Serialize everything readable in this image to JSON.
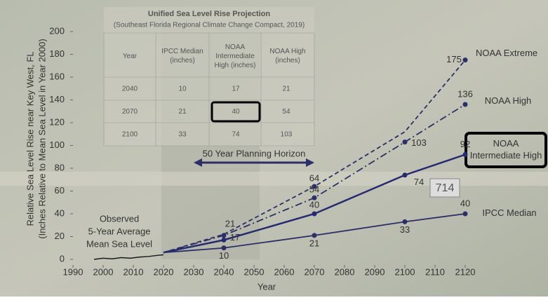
{
  "chart_data": {
    "type": "line",
    "table": {
      "title": "Unified Sea Level Rise Projection",
      "subtitle": "(Southeast Florida Regional Climate Change Compact, 2019)",
      "columns": [
        "Year",
        "IPCC Median (inches)",
        "NOAA Intermediate High (inches)",
        "NOAA High (inches)"
      ],
      "rows": [
        [
          "2040",
          "10",
          "17",
          "21"
        ],
        [
          "2070",
          "21",
          "40",
          "54"
        ],
        [
          "2100",
          "33",
          "74",
          "103"
        ]
      ]
    },
    "xlabel": "Year",
    "ylabel": [
      "Relative Sea Level Rise near Key West, FL",
      "(Inches Relative to Mean Sea Level in Year 2000)"
    ],
    "xlim": [
      1990,
      2120
    ],
    "xticks": [
      1990,
      2000,
      2010,
      2020,
      2030,
      2040,
      2050,
      2060,
      2070,
      2080,
      2090,
      2100,
      2110,
      2120
    ],
    "ylim": [
      0,
      200
    ],
    "yticks": [
      0,
      20,
      40,
      60,
      80,
      100,
      120,
      140,
      160,
      180,
      200
    ],
    "observed": {
      "label": [
        "Observed",
        "5-Year Average",
        "Mean Sea Level"
      ],
      "color": "#1a1a1a",
      "x": [
        1997,
        2000,
        2003,
        2006,
        2009,
        2012,
        2015,
        2018,
        2020
      ],
      "values": [
        0,
        1,
        0.5,
        1.5,
        1,
        2,
        2.5,
        3.5,
        4
      ]
    },
    "planning_horizon": {
      "label": "50 Year Planning Horizon",
      "x": [
        2030,
        2070
      ]
    },
    "sign": "714",
    "series": [
      {
        "name": "NOAA Extreme",
        "color": "#2b2f66",
        "dash": "dashed",
        "x": [
          2020,
          2040,
          2070,
          2100,
          2120
        ],
        "values": [
          6,
          22,
          64,
          112,
          175
        ],
        "value_labels": [
          null,
          null,
          "64",
          null,
          "175"
        ]
      },
      {
        "name": "NOAA High",
        "color": "#2b2f66",
        "dash": "dashdot",
        "x": [
          2020,
          2040,
          2070,
          2100,
          2120
        ],
        "values": [
          6,
          21,
          54,
          103,
          136
        ],
        "value_labels": [
          null,
          "21",
          "54",
          "103",
          "136"
        ]
      },
      {
        "name": "NOAA Intermediate High",
        "color": "#262a70",
        "dash": "solid",
        "x": [
          2020,
          2040,
          2070,
          2100,
          2120
        ],
        "values": [
          6,
          17,
          40,
          74,
          92
        ],
        "value_labels": [
          null,
          "17",
          "40",
          "74",
          "92"
        ]
      },
      {
        "name": "IPCC Median",
        "color": "#2b2f66",
        "dash": "solid",
        "x": [
          2020,
          2040,
          2070,
          2100,
          2120
        ],
        "values": [
          6,
          10,
          21,
          33,
          40
        ],
        "value_labels": [
          null,
          "10",
          "21",
          "33",
          "40"
        ]
      }
    ]
  }
}
